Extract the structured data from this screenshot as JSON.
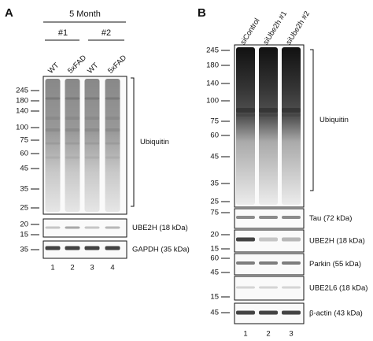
{
  "panels": [
    {
      "label": "A",
      "header": "5 Month",
      "groups": [
        "#1",
        "#2"
      ],
      "lanes": [
        "WT",
        "5xFAD",
        "WT",
        "5xFAD"
      ],
      "blots": [
        {
          "markers": [
            245,
            180,
            140,
            100,
            75,
            60,
            45,
            35,
            25
          ],
          "label": "Ubiquitin"
        },
        {
          "markers": [
            20,
            15
          ],
          "label": "UBE2H (18 kDa)"
        },
        {
          "markers": [
            35
          ],
          "label": "GAPDH (35 kDa)"
        }
      ],
      "lane_numbers": [
        1,
        2,
        3,
        4
      ]
    },
    {
      "label": "B",
      "lanes": [
        "siControl",
        "siUbe2h #1",
        "siUbe2h #2"
      ],
      "blots": [
        {
          "markers": [
            245,
            180,
            140,
            100,
            75,
            60,
            45,
            35,
            25
          ],
          "label": "Ubiquitin"
        },
        {
          "markers": [
            75
          ],
          "label": "Tau (72 kDa)"
        },
        {
          "markers": [
            20,
            15
          ],
          "label": "UBE2H (18 kDa)"
        },
        {
          "markers": [
            60,
            45
          ],
          "label": "Parkin (55 kDa)"
        },
        {
          "markers": [
            15
          ],
          "label": "UBE2L6 (18 kDa)"
        },
        {
          "markers": [
            45
          ],
          "label": "β-actin (43 kDa)"
        }
      ],
      "lane_numbers": [
        1,
        2,
        3
      ]
    }
  ]
}
